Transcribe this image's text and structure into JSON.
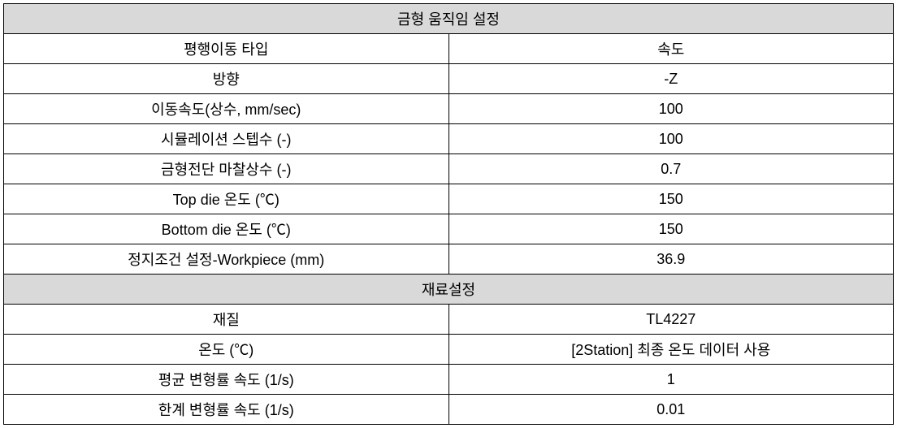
{
  "table": {
    "section1": {
      "header": "금형 움직임 설정",
      "rows": [
        {
          "label": "평행이동 타입",
          "value": "속도"
        },
        {
          "label": "방향",
          "value": "-Z"
        },
        {
          "label": "이동속도(상수, mm/sec)",
          "value": "100"
        },
        {
          "label": "시뮬레이션 스텝수 (-)",
          "value": "100"
        },
        {
          "label": "금형전단 마찰상수 (-)",
          "value": "0.7"
        },
        {
          "label": "Top die 온도 (℃)",
          "value": "150"
        },
        {
          "label": "Bottom die 온도 (℃)",
          "value": "150"
        },
        {
          "label": "정지조건 설정-Workpiece (mm)",
          "value": "36.9"
        }
      ]
    },
    "section2": {
      "header": "재료설정",
      "rows": [
        {
          "label": "재질",
          "value": "TL4227"
        },
        {
          "label": "온도 (℃)",
          "value": "[2Station] 최종 온도 데이터 사용"
        },
        {
          "label": "평균 변형률 속도 (1/s)",
          "value": "1"
        },
        {
          "label": "한계 변형률 속도 (1/s)",
          "value": "0.01"
        }
      ]
    },
    "colors": {
      "header_bg": "#d9d9d9",
      "border": "#000000",
      "text": "#000000",
      "background": "#ffffff"
    },
    "fontsize": 18
  }
}
